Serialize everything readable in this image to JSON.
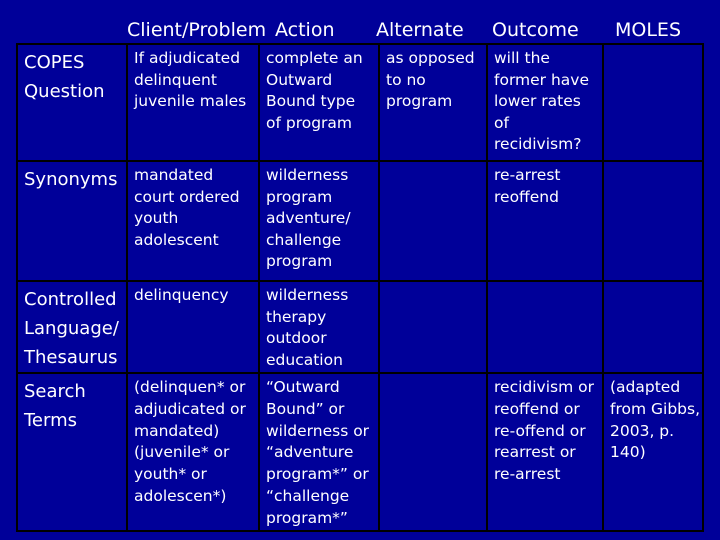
{
  "headers": {
    "client": "Client/Problem",
    "action": "Action",
    "alternate": "Alternate",
    "outcome": "Outcome",
    "moles": "MOLES"
  },
  "rows": [
    {
      "label": [
        "COPES",
        "Question"
      ],
      "client": [
        "If adjudicated",
        "delinquent",
        "juvenile males"
      ],
      "action": [
        "complete an",
        "Outward",
        "Bound type",
        "of program"
      ],
      "alternate": [
        "as opposed",
        "to no",
        "program"
      ],
      "outcome": [
        "will the",
        "former have",
        "lower rates",
        "of",
        "recidivism?"
      ],
      "moles": []
    },
    {
      "label": [
        "Synonyms"
      ],
      "client": [
        "mandated",
        "court ordered",
        "youth",
        "adolescent"
      ],
      "action": [
        "wilderness",
        "program",
        "adventure/",
        "challenge",
        "program"
      ],
      "alternate": [],
      "outcome": [
        "re-arrest",
        "reoffend"
      ],
      "moles": []
    },
    {
      "label": [
        "Controlled",
        "Language/",
        "Thesaurus"
      ],
      "client": [
        "delinquency"
      ],
      "action": [
        "wilderness",
        "therapy",
        "outdoor",
        "education"
      ],
      "alternate": [],
      "outcome": [],
      "moles": []
    },
    {
      "label": [
        "Search",
        "Terms"
      ],
      "client": [
        "(delinquen* or",
        "adjudicated or",
        "mandated)",
        "(juvenile* or",
        "youth* or",
        "adolescen*)"
      ],
      "action": [
        "“Outward",
        "Bound” or",
        "wilderness or",
        "“adventure",
        "program*” or",
        "“challenge",
        "program*”"
      ],
      "alternate": [],
      "outcome": [
        "recidivism or",
        "reoffend or",
        "re-offend or",
        "rearrest or",
        "re-arrest"
      ],
      "moles": [
        "(adapted",
        "from Gibbs,",
        "2003, p.",
        "140)"
      ]
    }
  ]
}
